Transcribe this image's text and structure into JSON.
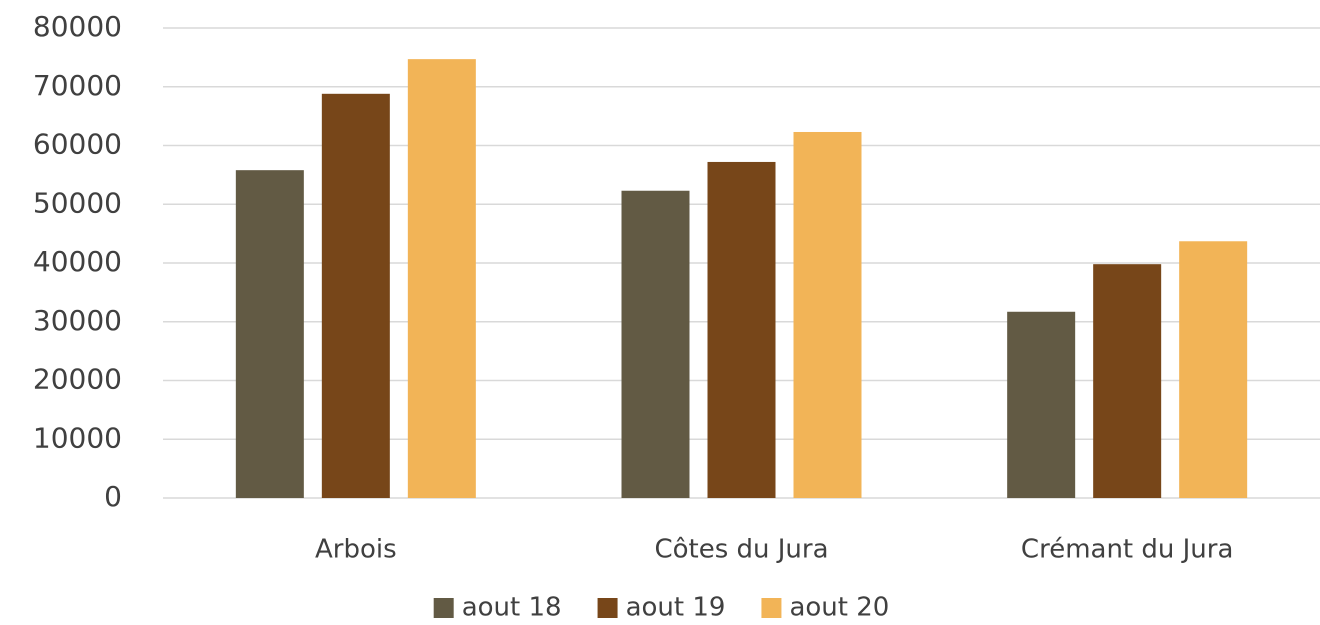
{
  "chart_data": {
    "type": "bar",
    "categories": [
      "Arbois",
      "Côtes du Jura",
      "Crémant du Jura"
    ],
    "series": [
      {
        "name": "aout 18",
        "color": "#625a44",
        "values": [
          55800,
          52300,
          31700
        ]
      },
      {
        "name": "aout 19",
        "color": "#774619",
        "values": [
          68800,
          57200,
          39800
        ]
      },
      {
        "name": "aout 20",
        "color": "#f2b457",
        "values": [
          74700,
          62300,
          43700
        ]
      }
    ],
    "ylim": [
      0,
      80000
    ],
    "yticks": [
      0,
      10000,
      20000,
      30000,
      40000,
      50000,
      60000,
      70000,
      80000
    ],
    "grid": true,
    "legend": "bottom"
  }
}
